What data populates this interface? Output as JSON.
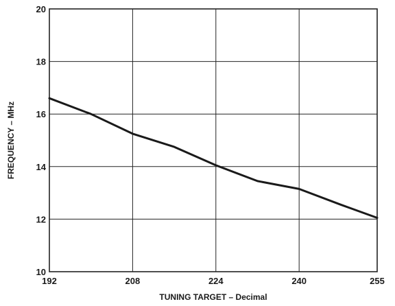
{
  "chart_data": {
    "type": "line",
    "title": "",
    "xlabel": "TUNING TARGET – Decimal",
    "ylabel": "FREQUENCY – MHz",
    "xlim": [
      192,
      255
    ],
    "ylim": [
      10,
      20
    ],
    "xticks": [
      192,
      208,
      224,
      240,
      255
    ],
    "yticks": [
      10,
      12,
      14,
      16,
      18,
      20
    ],
    "grid": true,
    "series": [
      {
        "x": [
          192,
          200,
          208,
          216,
          224,
          232,
          240,
          248,
          255
        ],
        "y": [
          16.6,
          16.0,
          15.25,
          14.75,
          14.05,
          13.45,
          13.15,
          12.55,
          12.05
        ]
      }
    ]
  }
}
